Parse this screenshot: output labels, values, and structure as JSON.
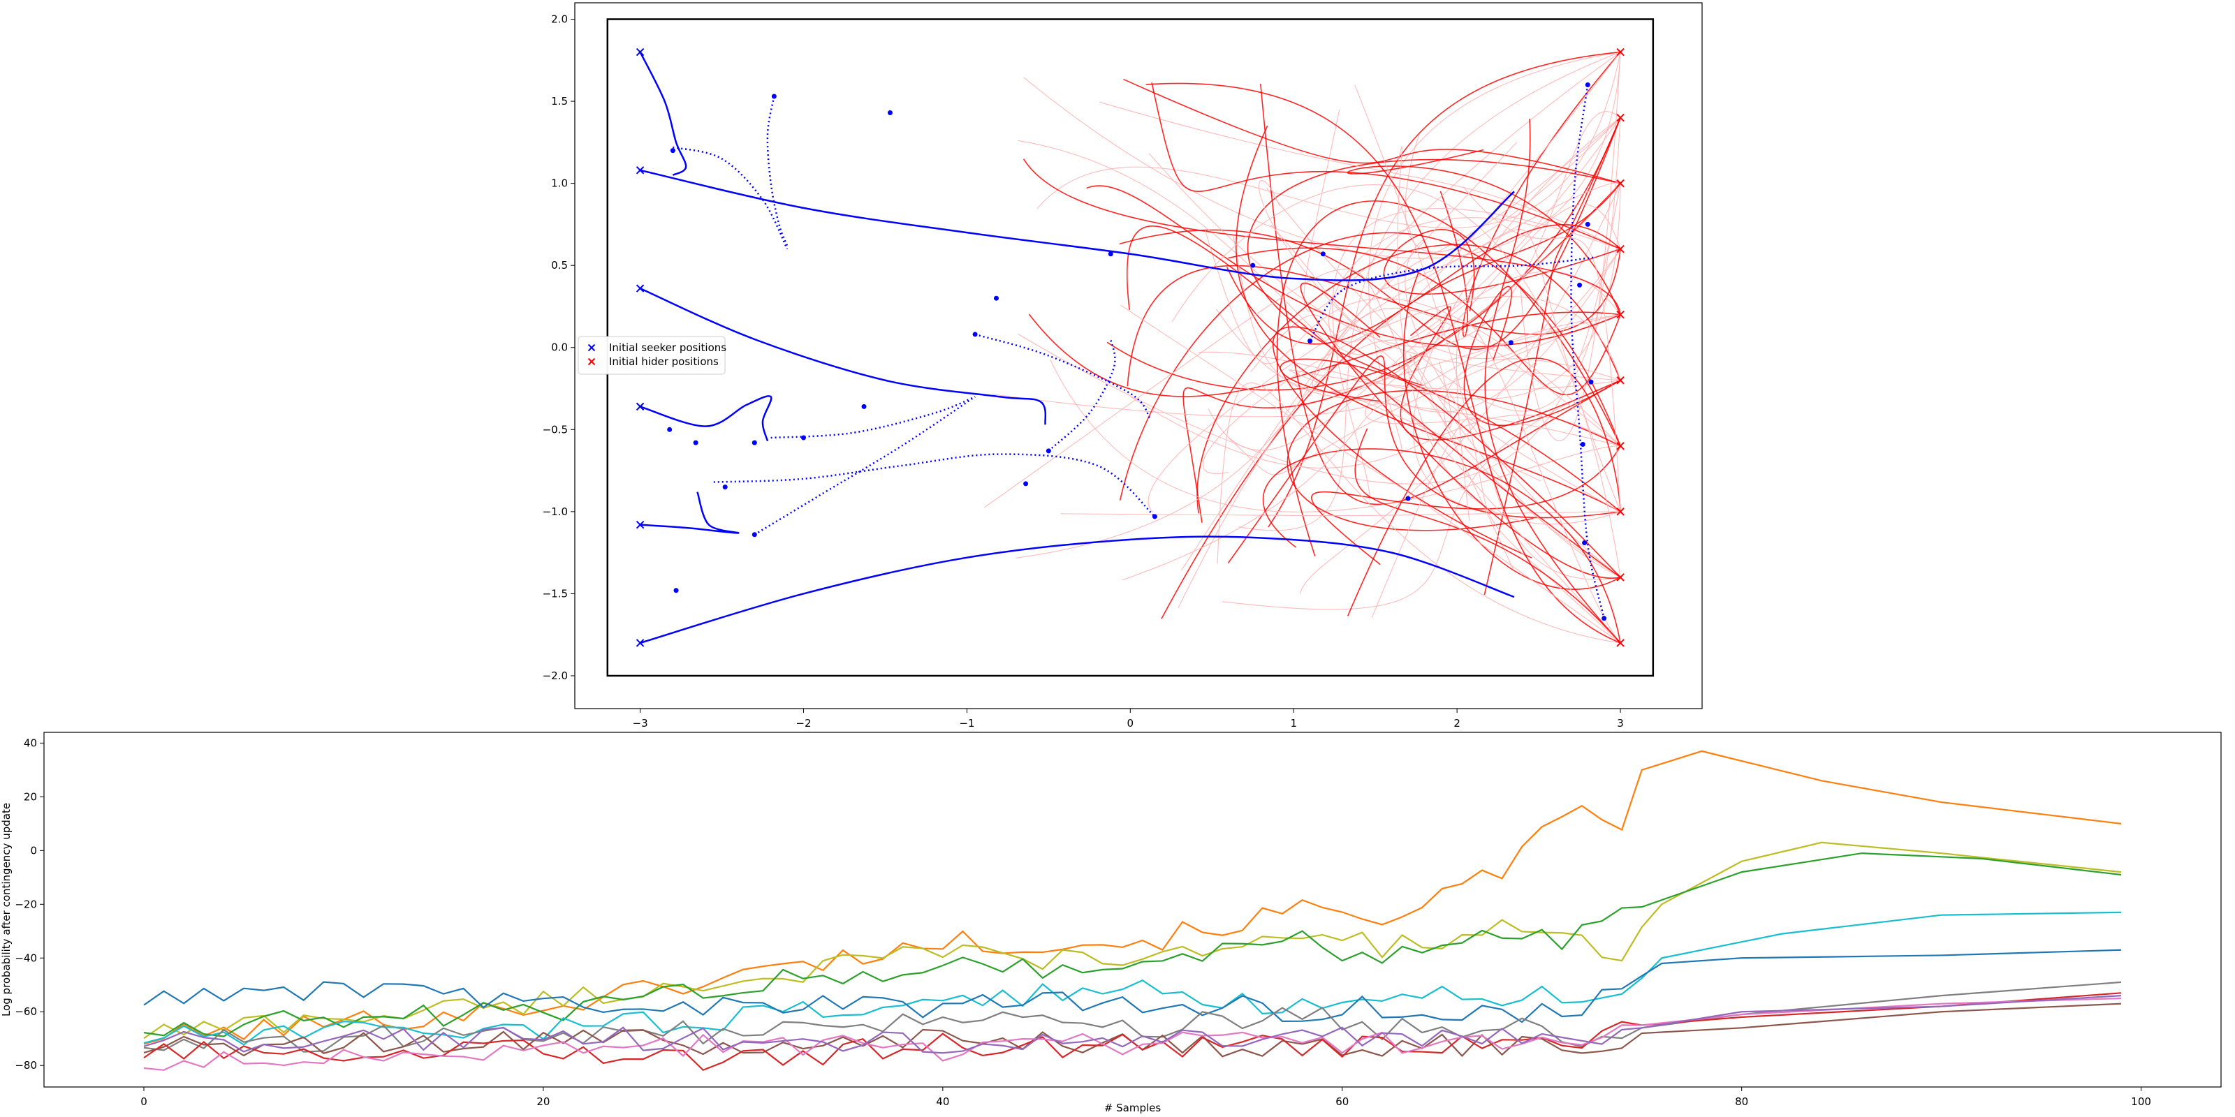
{
  "chart_data": [
    {
      "type": "line",
      "title": "",
      "xlabel": "",
      "ylabel": "",
      "xlim": [
        -3.4,
        3.5
      ],
      "ylim": [
        -2.2,
        2.1
      ],
      "x_ticks": [
        "−3",
        "−2",
        "−1",
        "0",
        "1",
        "2",
        "3"
      ],
      "y_ticks": [
        "−2.0",
        "−1.5",
        "−1.0",
        "−0.5",
        "0.0",
        "0.5",
        "1.0",
        "1.5",
        "2.0"
      ],
      "x_tick_values": [
        -3,
        -2,
        -1,
        0,
        1,
        2,
        3
      ],
      "y_tick_values": [
        -2.0,
        -1.5,
        -1.0,
        -0.5,
        0.0,
        0.5,
        1.0,
        1.5,
        2.0
      ],
      "boundary_box": {
        "x": [
          -3.2,
          3.2
        ],
        "y": [
          -2.0,
          2.0
        ]
      },
      "legend": {
        "position": "center-left",
        "entries": [
          {
            "label": "Initial seeker positions",
            "color": "#0000ff",
            "marker": "x"
          },
          {
            "label": "Initial hider positions",
            "color": "#ff0000",
            "marker": "x"
          }
        ]
      },
      "colors": {
        "seeker": "#0000ff",
        "hider": "#ff0000",
        "hider_faint": "#ffb3b3"
      },
      "seeker_starts": [
        [
          -3,
          1.8
        ],
        [
          -3,
          1.08
        ],
        [
          -3,
          0.36
        ],
        [
          -3,
          -0.36
        ],
        [
          -3,
          -1.08
        ],
        [
          -3,
          -1.8
        ]
      ],
      "hider_starts": [
        [
          3,
          1.8
        ],
        [
          3,
          1.4
        ],
        [
          3,
          1.0
        ],
        [
          3,
          0.6
        ],
        [
          3,
          0.2
        ],
        [
          3,
          -0.2
        ],
        [
          3,
          -0.6
        ],
        [
          3,
          -1.0
        ],
        [
          3,
          -1.4
        ],
        [
          3,
          -1.8
        ]
      ],
      "seeker_paths_solid": [
        [
          [
            -3,
            1.8
          ],
          [
            -2.85,
            1.5
          ],
          [
            -2.78,
            1.25
          ],
          [
            -2.72,
            1.1
          ],
          [
            -2.8,
            1.05
          ]
        ],
        [
          [
            -3,
            1.08
          ],
          [
            -2.0,
            0.85
          ],
          [
            -1.0,
            0.7
          ],
          [
            0.0,
            0.57
          ],
          [
            1.0,
            0.42
          ],
          [
            1.8,
            0.48
          ],
          [
            2.35,
            0.95
          ]
        ],
        [
          [
            -3,
            0.36
          ],
          [
            -2.3,
            0.05
          ],
          [
            -1.5,
            -0.2
          ],
          [
            -0.8,
            -0.3
          ],
          [
            -0.55,
            -0.33
          ],
          [
            -0.52,
            -0.47
          ]
        ],
        [
          [
            -3,
            -0.36
          ],
          [
            -2.6,
            -0.48
          ],
          [
            -2.35,
            -0.35
          ],
          [
            -2.2,
            -0.3
          ],
          [
            -2.25,
            -0.45
          ],
          [
            -2.22,
            -0.57
          ]
        ],
        [
          [
            -3,
            -1.08
          ],
          [
            -2.7,
            -1.1
          ],
          [
            -2.4,
            -1.13
          ],
          [
            -2.58,
            -1.08
          ],
          [
            -2.65,
            -0.88
          ]
        ],
        [
          [
            -3,
            -1.8
          ],
          [
            -2.0,
            -1.5
          ],
          [
            -1.0,
            -1.28
          ],
          [
            0.0,
            -1.17
          ],
          [
            0.8,
            -1.16
          ],
          [
            1.6,
            -1.25
          ],
          [
            2.35,
            -1.52
          ]
        ]
      ],
      "seeker_paths_dotted": [
        [
          [
            -2.8,
            1.22
          ],
          [
            -2.5,
            1.15
          ],
          [
            -2.25,
            0.9
          ],
          [
            -2.1,
            0.6
          ]
        ],
        [
          [
            -2.18,
            1.53
          ],
          [
            -2.22,
            1.3
          ],
          [
            -2.2,
            1.0
          ],
          [
            -2.15,
            0.75
          ],
          [
            -2.1,
            0.62
          ]
        ],
        [
          [
            -2.55,
            -0.82
          ],
          [
            -2.0,
            -0.8
          ],
          [
            -1.4,
            -0.72
          ],
          [
            -0.8,
            -0.65
          ],
          [
            -0.2,
            -0.72
          ],
          [
            0.15,
            -1.03
          ]
        ],
        [
          [
            -2.3,
            -1.14
          ],
          [
            -1.9,
            -0.9
          ],
          [
            -1.4,
            -0.6
          ],
          [
            -0.95,
            -0.3
          ]
        ],
        [
          [
            -0.95,
            0.08
          ],
          [
            -0.5,
            -0.05
          ],
          [
            0.0,
            -0.28
          ],
          [
            0.12,
            -0.43
          ]
        ],
        [
          [
            -0.5,
            -0.63
          ],
          [
            -0.25,
            -0.4
          ],
          [
            -0.1,
            -0.12
          ],
          [
            -0.12,
            0.05
          ]
        ],
        [
          [
            -2.2,
            -0.55
          ],
          [
            -1.7,
            -0.52
          ],
          [
            -1.2,
            -0.4
          ],
          [
            -0.95,
            -0.3
          ]
        ],
        [
          [
            1.1,
            0.04
          ],
          [
            1.3,
            0.35
          ],
          [
            1.8,
            0.48
          ],
          [
            2.4,
            0.5
          ],
          [
            2.85,
            0.55
          ]
        ],
        [
          [
            2.8,
            1.6
          ],
          [
            2.72,
            1.0
          ],
          [
            2.7,
            0.2
          ],
          [
            2.75,
            -0.5
          ],
          [
            2.8,
            -1.2
          ],
          [
            2.9,
            -1.65
          ]
        ]
      ],
      "seeker_markers": [
        [
          -2.18,
          1.53
        ],
        [
          -1.47,
          1.43
        ],
        [
          -2.8,
          1.2
        ],
        [
          -0.12,
          0.57
        ],
        [
          0.75,
          0.5
        ],
        [
          1.18,
          0.57
        ],
        [
          -0.82,
          0.3
        ],
        [
          -0.95,
          0.08
        ],
        [
          -2.82,
          -0.5
        ],
        [
          -2.66,
          -0.58
        ],
        [
          -2.3,
          -0.58
        ],
        [
          -2.0,
          -0.55
        ],
        [
          -1.63,
          -0.36
        ],
        [
          -0.5,
          -0.63
        ],
        [
          -0.64,
          -0.83
        ],
        [
          -2.48,
          -0.85
        ],
        [
          -2.3,
          -1.14
        ],
        [
          -2.78,
          -1.48
        ],
        [
          0.15,
          -1.03
        ],
        [
          1.1,
          0.04
        ],
        [
          1.7,
          -0.92
        ],
        [
          2.33,
          0.03
        ],
        [
          2.8,
          1.6
        ],
        [
          2.75,
          0.38
        ],
        [
          2.8,
          0.75
        ],
        [
          2.82,
          -0.21
        ],
        [
          2.77,
          -0.59
        ],
        [
          2.78,
          -1.19
        ],
        [
          2.9,
          -1.65
        ]
      ]
    },
    {
      "type": "line",
      "title": "",
      "xlabel": "# Samples",
      "ylabel": "Log probability after contingency update",
      "xlim": [
        -5,
        104
      ],
      "ylim": [
        -88,
        44
      ],
      "x_ticks": [
        "0",
        "20",
        "40",
        "60",
        "80",
        "100"
      ],
      "y_ticks": [
        "−80",
        "−60",
        "−40",
        "−20",
        "0",
        "20",
        "40"
      ],
      "x_tick_values": [
        0,
        20,
        40,
        60,
        80,
        100
      ],
      "y_tick_values": [
        -80,
        -60,
        -40,
        -20,
        0,
        20,
        40
      ],
      "x_length": 100,
      "series": [
        {
          "color": "#ff7f0e",
          "anchors": [
            [
              0,
              -70
            ],
            [
              20,
              -58
            ],
            [
              30,
              -46
            ],
            [
              40,
              -34
            ],
            [
              50,
              -34
            ],
            [
              58,
              -22
            ],
            [
              62,
              -24
            ],
            [
              68,
              -9
            ],
            [
              70,
              5
            ],
            [
              72,
              13
            ],
            [
              74,
              10
            ],
            [
              75,
              30
            ],
            [
              78,
              37
            ],
            [
              84,
              26
            ],
            [
              90,
              18
            ],
            [
              99,
              10
            ]
          ]
        },
        {
          "color": "#bcbd22",
          "anchors": [
            [
              0,
              -68
            ],
            [
              20,
              -56
            ],
            [
              30,
              -48
            ],
            [
              40,
              -38
            ],
            [
              50,
              -42
            ],
            [
              58,
              -30
            ],
            [
              62,
              -36
            ],
            [
              68,
              -30
            ],
            [
              70,
              -34
            ],
            [
              74,
              -37
            ],
            [
              76,
              -20
            ],
            [
              80,
              -4
            ],
            [
              84,
              3
            ],
            [
              90,
              -1
            ],
            [
              99,
              -8
            ]
          ]
        },
        {
          "color": "#2ca02c",
          "anchors": [
            [
              0,
              -66
            ],
            [
              20,
              -60
            ],
            [
              30,
              -50
            ],
            [
              40,
              -42
            ],
            [
              50,
              -44
            ],
            [
              58,
              -30
            ],
            [
              60,
              -40
            ],
            [
              66,
              -34
            ],
            [
              72,
              -32
            ],
            [
              75,
              -21
            ],
            [
              80,
              -8
            ],
            [
              86,
              -1
            ],
            [
              92,
              -3
            ],
            [
              99,
              -9
            ]
          ]
        },
        {
          "color": "#17becf",
          "anchors": [
            [
              0,
              -70
            ],
            [
              20,
              -66
            ],
            [
              30,
              -62
            ],
            [
              40,
              -56
            ],
            [
              50,
              -52
            ],
            [
              58,
              -58
            ],
            [
              62,
              -52
            ],
            [
              68,
              -55
            ],
            [
              72,
              -52
            ],
            [
              74,
              -55
            ],
            [
              76,
              -40
            ],
            [
              82,
              -31
            ],
            [
              90,
              -24
            ],
            [
              99,
              -23
            ]
          ]
        },
        {
          "color": "#1f77b4",
          "anchors": [
            [
              0,
              -56
            ],
            [
              10,
              -52
            ],
            [
              20,
              -56
            ],
            [
              30,
              -58
            ],
            [
              40,
              -58
            ],
            [
              50,
              -56
            ],
            [
              58,
              -60
            ],
            [
              62,
              -58
            ],
            [
              68,
              -62
            ],
            [
              73,
              -56
            ],
            [
              76,
              -42
            ],
            [
              80,
              -40
            ],
            [
              90,
              -39
            ],
            [
              99,
              -37
            ]
          ]
        },
        {
          "color": "#7f7f7f",
          "anchors": [
            [
              0,
              -72
            ],
            [
              20,
              -68
            ],
            [
              30,
              -68
            ],
            [
              40,
              -64
            ],
            [
              50,
              -66
            ],
            [
              58,
              -62
            ],
            [
              62,
              -66
            ],
            [
              68,
              -66
            ],
            [
              73,
              -70
            ],
            [
              75,
              -66
            ],
            [
              80,
              -61
            ],
            [
              90,
              -54
            ],
            [
              99,
              -49
            ]
          ]
        },
        {
          "color": "#8c564b",
          "anchors": [
            [
              0,
              -74
            ],
            [
              20,
              -70
            ],
            [
              30,
              -72
            ],
            [
              40,
              -70
            ],
            [
              50,
              -72
            ],
            [
              58,
              -74
            ],
            [
              62,
              -72
            ],
            [
              68,
              -72
            ],
            [
              73,
              -72
            ],
            [
              75,
              -68
            ],
            [
              80,
              -66
            ],
            [
              90,
              -60
            ],
            [
              99,
              -57
            ]
          ]
        },
        {
          "color": "#d62728",
          "anchors": [
            [
              0,
              -76
            ],
            [
              20,
              -74
            ],
            [
              30,
              -78
            ],
            [
              40,
              -72
            ],
            [
              50,
              -73
            ],
            [
              58,
              -72
            ],
            [
              62,
              -74
            ],
            [
              68,
              -72
            ],
            [
              73,
              -70
            ],
            [
              75,
              -65
            ],
            [
              80,
              -62
            ],
            [
              90,
              -58
            ],
            [
              99,
              -53
            ]
          ]
        },
        {
          "color": "#e377c2",
          "anchors": [
            [
              0,
              -80
            ],
            [
              20,
              -76
            ],
            [
              30,
              -72
            ],
            [
              40,
              -74
            ],
            [
              50,
              -72
            ],
            [
              58,
              -70
            ],
            [
              62,
              -72
            ],
            [
              68,
              -72
            ],
            [
              73,
              -69
            ],
            [
              75,
              -65
            ],
            [
              80,
              -61
            ],
            [
              90,
              -57
            ],
            [
              99,
              -55
            ]
          ]
        },
        {
          "color": "#9467bd",
          "anchors": [
            [
              0,
              -72
            ],
            [
              20,
              -70
            ],
            [
              30,
              -70
            ],
            [
              40,
              -72
            ],
            [
              50,
              -70
            ],
            [
              58,
              -68
            ],
            [
              62,
              -72
            ],
            [
              68,
              -70
            ],
            [
              73,
              -68
            ],
            [
              75,
              -66
            ],
            [
              80,
              -60
            ],
            [
              90,
              -58
            ],
            [
              99,
              -54
            ]
          ]
        }
      ]
    }
  ]
}
